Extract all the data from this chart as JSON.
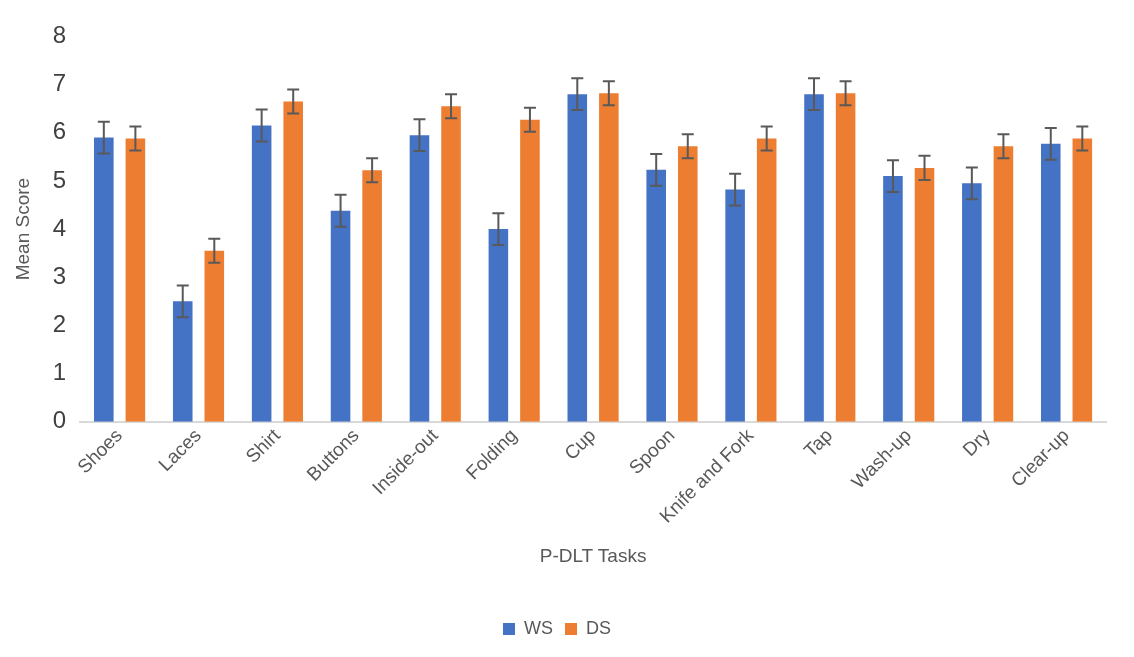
{
  "chart_data": {
    "type": "bar",
    "xlabel": "P-DLT Tasks",
    "ylabel": "Mean Score",
    "categories": [
      "Shoes",
      "Laces",
      "Shirt",
      "Buttons",
      "Inside-out",
      "Folding",
      "Cup",
      "Spoon",
      "Knife and Fork",
      "Tap",
      "Wash-up",
      "Dry",
      "Clear-up"
    ],
    "series": [
      {
        "name": "WS",
        "color": "#4472c4",
        "values": [
          5.9,
          2.5,
          6.15,
          4.38,
          5.95,
          4.0,
          6.8,
          5.23,
          4.82,
          6.8,
          5.1,
          4.95,
          5.77
        ],
        "errors": [
          0.33,
          0.33,
          0.33,
          0.33,
          0.33,
          0.33,
          0.33,
          0.33,
          0.33,
          0.33,
          0.33,
          0.33,
          0.33
        ]
      },
      {
        "name": "DS",
        "color": "#ed7d31",
        "values": [
          5.88,
          3.55,
          6.65,
          5.22,
          6.55,
          6.27,
          6.82,
          5.72,
          5.88,
          6.82,
          5.27,
          5.72,
          5.88
        ],
        "errors": [
          0.25,
          0.25,
          0.25,
          0.25,
          0.25,
          0.25,
          0.25,
          0.25,
          0.25,
          0.25,
          0.25,
          0.25,
          0.25
        ]
      }
    ],
    "ylim": [
      0,
      8
    ],
    "yticks": [
      0,
      1,
      2,
      3,
      4,
      5,
      6,
      7,
      8
    ],
    "grid": false,
    "legend": "bottom"
  }
}
